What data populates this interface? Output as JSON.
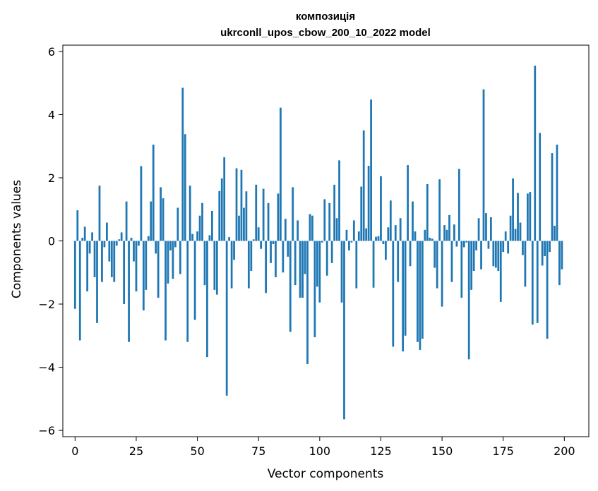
{
  "chart_data": {
    "type": "bar",
    "title_line1": "композиція",
    "title_line2": "ukrconll_upos_cbow_200_10_2022 model",
    "xlabel": "Vector components",
    "ylabel": "Components values",
    "xlim": [
      -5,
      210
    ],
    "ylim": [
      -6.2,
      6.2
    ],
    "xticks": [
      0,
      25,
      50,
      75,
      100,
      125,
      150,
      175,
      200
    ],
    "yticks": [
      -6,
      -4,
      -2,
      0,
      2,
      4,
      6
    ],
    "ytick_labels": [
      "−6",
      "−4",
      "−2",
      "0",
      "2",
      "4",
      "6"
    ],
    "bar_color": "#1f77b4",
    "grid": false,
    "x": [
      0,
      1,
      2,
      3,
      4,
      5,
      6,
      7,
      8,
      9,
      10,
      11,
      12,
      13,
      14,
      15,
      16,
      17,
      18,
      19,
      20,
      21,
      22,
      23,
      24,
      25,
      26,
      27,
      28,
      29,
      30,
      31,
      32,
      33,
      34,
      35,
      36,
      37,
      38,
      39,
      40,
      41,
      42,
      43,
      44,
      45,
      46,
      47,
      48,
      49,
      50,
      51,
      52,
      53,
      54,
      55,
      56,
      57,
      58,
      59,
      60,
      61,
      62,
      63,
      64,
      65,
      66,
      67,
      68,
      69,
      70,
      71,
      72,
      73,
      74,
      75,
      76,
      77,
      78,
      79,
      80,
      81,
      82,
      83,
      84,
      85,
      86,
      87,
      88,
      89,
      90,
      91,
      92,
      93,
      94,
      95,
      96,
      97,
      98,
      99,
      100,
      101,
      102,
      103,
      104,
      105,
      106,
      107,
      108,
      109,
      110,
      111,
      112,
      113,
      114,
      115,
      116,
      117,
      118,
      119,
      120,
      121,
      122,
      123,
      124,
      125,
      126,
      127,
      128,
      129,
      130,
      131,
      132,
      133,
      134,
      135,
      136,
      137,
      138,
      139,
      140,
      141,
      142,
      143,
      144,
      145,
      146,
      147,
      148,
      149,
      150,
      151,
      152,
      153,
      154,
      155,
      156,
      157,
      158,
      159,
      160,
      161,
      162,
      163,
      164,
      165,
      166,
      167,
      168,
      169,
      170,
      171,
      172,
      173,
      174,
      175,
      176,
      177,
      178,
      179,
      180,
      181,
      182,
      183,
      184,
      185,
      186,
      187,
      188,
      189,
      190,
      191,
      192,
      193,
      194,
      195,
      196,
      197,
      198,
      199
    ],
    "values": [
      -2.15,
      0.97,
      -3.15,
      0.1,
      0.45,
      -1.6,
      -0.4,
      0.27,
      -1.15,
      -2.6,
      1.75,
      -1.3,
      -0.2,
      0.58,
      -0.65,
      -1.15,
      -1.3,
      -0.15,
      0.05,
      0.27,
      -2.0,
      1.25,
      -3.2,
      0.1,
      -0.65,
      -1.6,
      -0.15,
      2.37,
      -2.2,
      -1.55,
      0.15,
      1.25,
      3.05,
      -0.4,
      -1.8,
      1.7,
      1.35,
      -3.15,
      -1.35,
      -0.3,
      -1.2,
      -0.2,
      1.05,
      -1.05,
      4.85,
      3.38,
      -3.2,
      1.75,
      0.22,
      -2.5,
      0.3,
      0.8,
      1.2,
      -1.4,
      -3.68,
      0.18,
      0.95,
      -1.55,
      -1.7,
      1.58,
      1.98,
      2.65,
      -4.9,
      0.12,
      -1.5,
      -0.6,
      2.3,
      0.8,
      2.25,
      1.05,
      1.57,
      -1.5,
      -0.95,
      0.05,
      1.78,
      0.43,
      -0.25,
      1.65,
      -1.65,
      1.2,
      -0.7,
      -0.1,
      -1.15,
      1.5,
      4.22,
      -1.0,
      0.7,
      -0.5,
      -2.88,
      1.7,
      -1.4,
      0.65,
      -1.8,
      -1.8,
      -1.05,
      -3.9,
      0.85,
      0.8,
      -3.05,
      -1.45,
      -1.95,
      -0.05,
      1.32,
      -1.1,
      1.2,
      -0.7,
      1.78,
      0.72,
      2.55,
      -1.95,
      -5.65,
      0.35,
      -0.3,
      -0.05,
      0.65,
      -1.5,
      0.3,
      1.72,
      3.5,
      0.4,
      2.38,
      4.48,
      -1.48,
      0.13,
      0.15,
      2.05,
      -0.1,
      -0.6,
      0.43,
      1.28,
      -3.35,
      0.5,
      -1.3,
      0.72,
      -3.5,
      -3.0,
      2.4,
      -0.8,
      1.25,
      0.3,
      -3.2,
      -3.45,
      -3.1,
      0.35,
      1.8,
      0.1,
      0.07,
      -0.85,
      -1.5,
      1.95,
      -2.08,
      0.5,
      0.35,
      0.82,
      -1.3,
      0.52,
      -0.18,
      2.28,
      -1.8,
      -0.2,
      -0.05,
      -3.75,
      -1.55,
      -0.95,
      -0.3,
      0.72,
      -0.9,
      4.8,
      0.88,
      -0.25,
      0.75,
      -0.8,
      -0.85,
      -0.95,
      -1.93,
      -0.35,
      0.3,
      -0.4,
      0.8,
      1.98,
      0.38,
      1.52,
      0.58,
      -0.45,
      -1.45,
      1.5,
      1.55,
      -2.65,
      5.55,
      -2.6,
      3.42,
      -0.78,
      -0.48,
      -3.1,
      -0.35,
      2.78,
      0.48,
      3.05,
      -1.4,
      -0.9
    ]
  }
}
